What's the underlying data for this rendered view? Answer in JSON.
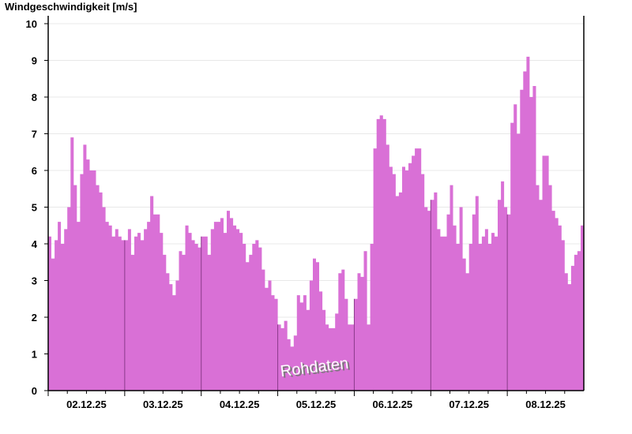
{
  "chart_data": {
    "type": "area",
    "title": "",
    "ylabel": "Windgeschwindigkeit [m/s]",
    "xlabel": "",
    "ylim": [
      0,
      10
    ],
    "yticks": [
      0,
      1,
      2,
      3,
      4,
      5,
      6,
      7,
      8,
      9,
      10
    ],
    "grid": true,
    "fill_color": "#d970d6",
    "separator_color": "#8a3b8a",
    "annotation": "Rohdaten",
    "days": [
      {
        "date": "02.12.25",
        "hourly": [
          4.2,
          3.6,
          4.1,
          4.6,
          4.0,
          4.4,
          5.0,
          6.9,
          5.6,
          4.6,
          5.9,
          6.7,
          6.3,
          6.0,
          6.0,
          5.6,
          5.4,
          5.0,
          4.6,
          4.5,
          4.2,
          4.4,
          4.2,
          4.1
        ]
      },
      {
        "date": "03.12.25",
        "hourly": [
          4.1,
          4.4,
          3.7,
          4.2,
          4.3,
          4.1,
          4.4,
          4.6,
          5.3,
          4.8,
          4.8,
          4.3,
          3.7,
          3.2,
          2.9,
          2.6,
          3.0,
          3.8,
          3.7,
          4.5,
          4.3,
          4.1,
          4.0,
          3.9
        ]
      },
      {
        "date": "04.12.25",
        "hourly": [
          4.2,
          4.2,
          3.7,
          4.4,
          4.6,
          4.6,
          4.7,
          4.3,
          4.9,
          4.7,
          4.5,
          4.4,
          4.3,
          4.0,
          3.5,
          3.7,
          4.0,
          4.1,
          3.9,
          3.3,
          2.8,
          3.0,
          2.6,
          2.5
        ]
      },
      {
        "date": "05.12.25",
        "hourly": [
          1.8,
          1.7,
          1.9,
          1.4,
          1.2,
          1.5,
          2.6,
          2.4,
          2.6,
          2.2,
          3.0,
          3.6,
          3.5,
          2.7,
          2.2,
          1.8,
          1.7,
          1.7,
          2.1,
          3.2,
          3.3,
          2.5,
          1.8,
          1.8
        ]
      },
      {
        "date": "06.12.25",
        "hourly": [
          2.5,
          3.2,
          3.1,
          3.8,
          1.8,
          4.0,
          6.6,
          7.4,
          7.5,
          7.4,
          6.7,
          6.1,
          5.9,
          5.3,
          5.4,
          6.1,
          6.0,
          6.2,
          6.4,
          6.6,
          6.6,
          5.9,
          5.0,
          4.9
        ]
      },
      {
        "date": "07.12.25",
        "hourly": [
          5.2,
          5.4,
          4.4,
          4.2,
          4.2,
          4.8,
          5.6,
          4.5,
          4.0,
          5.0,
          3.6,
          3.2,
          4.0,
          4.8,
          5.3,
          4.0,
          4.2,
          4.4,
          4.0,
          4.3,
          4.2,
          5.2,
          5.7,
          5.0
        ]
      },
      {
        "date": "08.12.25",
        "hourly": [
          4.8,
          7.3,
          7.8,
          7.0,
          8.2,
          8.7,
          9.1,
          8.0,
          8.3,
          5.6,
          5.2,
          6.4,
          6.4,
          5.6,
          4.9,
          4.7,
          4.5,
          4.1,
          3.2,
          2.9,
          3.4,
          3.7,
          3.8,
          4.5
        ]
      }
    ]
  }
}
